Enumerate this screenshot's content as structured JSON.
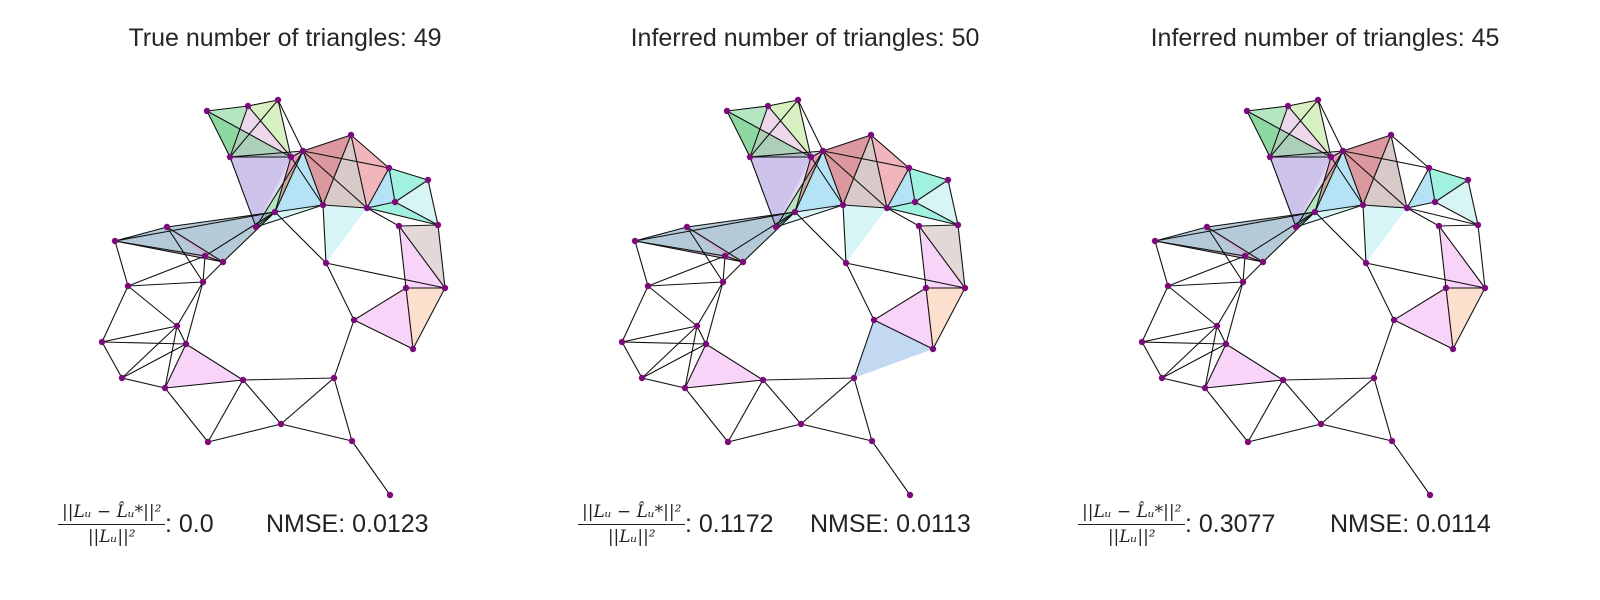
{
  "panels": [
    {
      "title": "True number of triangles: 49",
      "error_numerator": "||Lᵤ − L̂ᵤ*||²",
      "error_denominator": "||Lᵤ||²",
      "error_value": ": 0.0",
      "nmse": "NMSE: 0.0123"
    },
    {
      "title": "Inferred number of triangles: 50",
      "error_numerator": "||Lᵤ − L̂ᵤ*||²",
      "error_denominator": "||Lᵤ||²",
      "error_value": ": 0.1172",
      "nmse": "NMSE: 0.0113"
    },
    {
      "title": "Inferred number of triangles: 45",
      "error_numerator": "||Lᵤ − L̂ᵤ*||²",
      "error_denominator": "||Lᵤ||²",
      "error_value": ": 0.3077",
      "nmse": "NMSE: 0.0114"
    }
  ],
  "colors": {
    "node": "#7b0b7b",
    "edge": "#111111",
    "triangle_fills": [
      "#5cc878",
      "#a8e07a",
      "#d6a8d2",
      "#b8a8e0",
      "#e05a6a",
      "#a88a88",
      "#5bc0e8",
      "#2fe0b8",
      "#a8e8e8",
      "#5a8aa8",
      "#f090c0",
      "#e8d8a8",
      "#f8b890",
      "#f0a0f0",
      "#7aa8e0",
      "#c0a8a8"
    ]
  }
}
